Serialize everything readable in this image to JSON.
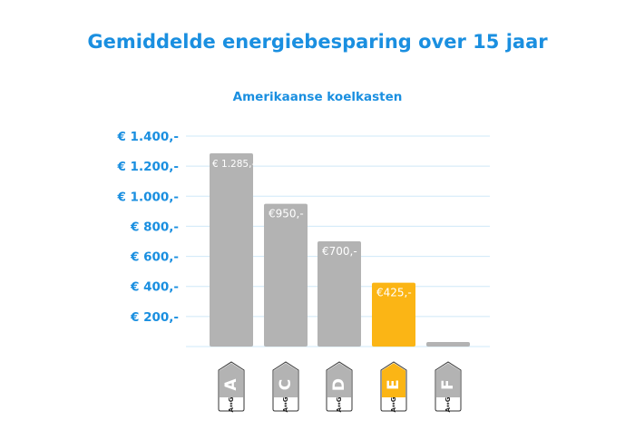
{
  "chart_data": {
    "type": "bar",
    "title": "Gemiddelde energiebesparing over 15 jaar",
    "subtitle": "Amerikaanse koelkasten",
    "categories": [
      "A",
      "C",
      "D",
      "E",
      "F"
    ],
    "values": [
      1285,
      950,
      700,
      425,
      30
    ],
    "data_labels": [
      "€ 1.285,-",
      "€950,-",
      "€700,-",
      "€425,-",
      ""
    ],
    "ylim": [
      0,
      1400
    ],
    "yticks": [
      200,
      400,
      600,
      800,
      1000,
      1200,
      1400
    ],
    "ytick_labels": [
      "€ 200,-",
      "€ 400,-",
      "€ 600,-",
      "€ 800,-",
      "€ 1.000,-",
      "€ 1.200,-",
      "€ 1.400,-"
    ],
    "grid": true,
    "energy_label_scale": "A↔G",
    "highlight_category": "E",
    "colors": {
      "bar": "#b3b3b3",
      "highlight": "#fbb515",
      "title": "#1a8fe0",
      "grid": "#cfe8f8"
    }
  }
}
